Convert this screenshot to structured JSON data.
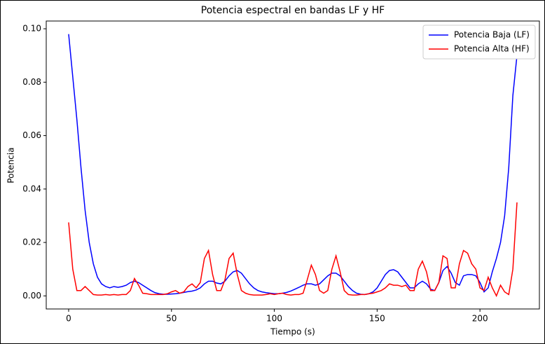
{
  "chart_data": {
    "type": "line",
    "title": "Potencia espectral en bandas LF y HF",
    "xlabel": "Tiempo (s)",
    "ylabel": "Potencia",
    "x": [
      0,
      2,
      4,
      6,
      8,
      10,
      12,
      14,
      16,
      18,
      20,
      22,
      24,
      26,
      28,
      30,
      32,
      34,
      36,
      38,
      40,
      42,
      44,
      46,
      48,
      50,
      52,
      54,
      56,
      58,
      60,
      62,
      64,
      66,
      68,
      70,
      72,
      74,
      76,
      78,
      80,
      82,
      84,
      86,
      88,
      90,
      92,
      94,
      96,
      98,
      100,
      102,
      104,
      106,
      108,
      110,
      112,
      114,
      116,
      118,
      120,
      122,
      124,
      126,
      128,
      130,
      132,
      134,
      136,
      138,
      140,
      142,
      144,
      146,
      148,
      150,
      152,
      154,
      156,
      158,
      160,
      162,
      164,
      166,
      168,
      170,
      172,
      174,
      176,
      178,
      180,
      182,
      184,
      186,
      188,
      190,
      192,
      194,
      196,
      198,
      200,
      202,
      204,
      206,
      208,
      210,
      212,
      214,
      216,
      218
    ],
    "series": [
      {
        "name": "Potencia Baja (LF)",
        "color": "#0000ff",
        "values": [
          0.098,
          0.082,
          0.066,
          0.048,
          0.032,
          0.02,
          0.012,
          0.007,
          0.0045,
          0.0035,
          0.003,
          0.0035,
          0.0032,
          0.0035,
          0.004,
          0.005,
          0.0055,
          0.005,
          0.004,
          0.003,
          0.002,
          0.0012,
          0.0008,
          0.0006,
          0.0006,
          0.0007,
          0.0008,
          0.001,
          0.0013,
          0.0016,
          0.0018,
          0.0022,
          0.003,
          0.0045,
          0.0055,
          0.0055,
          0.0048,
          0.0045,
          0.0055,
          0.0075,
          0.009,
          0.0095,
          0.0085,
          0.0065,
          0.0045,
          0.003,
          0.002,
          0.0015,
          0.0012,
          0.001,
          0.0008,
          0.0008,
          0.001,
          0.0013,
          0.0018,
          0.0025,
          0.0032,
          0.004,
          0.0045,
          0.0045,
          0.004,
          0.0045,
          0.006,
          0.0075,
          0.0085,
          0.0085,
          0.0075,
          0.0055,
          0.0035,
          0.002,
          0.001,
          0.0006,
          0.0005,
          0.0008,
          0.0015,
          0.003,
          0.0055,
          0.008,
          0.0095,
          0.0098,
          0.009,
          0.007,
          0.005,
          0.003,
          0.003,
          0.0045,
          0.0055,
          0.0045,
          0.0025,
          0.002,
          0.005,
          0.0095,
          0.011,
          0.0085,
          0.005,
          0.004,
          0.0075,
          0.008,
          0.008,
          0.0075,
          0.005,
          0.0015,
          0.003,
          0.009,
          0.014,
          0.02,
          0.03,
          0.048,
          0.075,
          0.09
        ]
      },
      {
        "name": "Potencia Alta (HF)",
        "color": "#ff0000",
        "values": [
          0.0275,
          0.01,
          0.002,
          0.002,
          0.0035,
          0.002,
          0.0005,
          0.0003,
          0.0003,
          0.0005,
          0.0003,
          0.0005,
          0.0003,
          0.0005,
          0.0005,
          0.002,
          0.0065,
          0.004,
          0.001,
          0.0008,
          0.0005,
          0.0005,
          0.0005,
          0.0005,
          0.0008,
          0.0015,
          0.002,
          0.001,
          0.0015,
          0.0035,
          0.0045,
          0.003,
          0.005,
          0.014,
          0.017,
          0.008,
          0.002,
          0.002,
          0.006,
          0.014,
          0.016,
          0.008,
          0.002,
          0.001,
          0.0005,
          0.0003,
          0.0003,
          0.0003,
          0.0005,
          0.0008,
          0.0005,
          0.0008,
          0.001,
          0.0005,
          0.0003,
          0.0005,
          0.0005,
          0.001,
          0.006,
          0.0115,
          0.008,
          0.002,
          0.001,
          0.002,
          0.01,
          0.015,
          0.009,
          0.002,
          0.0005,
          0.0003,
          0.0003,
          0.0005,
          0.0005,
          0.0008,
          0.001,
          0.0015,
          0.002,
          0.003,
          0.0045,
          0.004,
          0.004,
          0.0035,
          0.004,
          0.002,
          0.002,
          0.01,
          0.013,
          0.009,
          0.002,
          0.002,
          0.005,
          0.015,
          0.014,
          0.003,
          0.003,
          0.012,
          0.017,
          0.016,
          0.012,
          0.01,
          0.003,
          0.002,
          0.007,
          0.003,
          0.0,
          0.004,
          0.0015,
          0.0005,
          0.01,
          0.035
        ]
      }
    ],
    "xlim": [
      -10.9,
      228.9
    ],
    "ylim": [
      -0.0049,
      0.1029
    ],
    "xticks": [
      0,
      50,
      100,
      150,
      200
    ],
    "yticks": [
      {
        "value": 0,
        "label": "0.00"
      },
      {
        "value": 0.02,
        "label": "0.02"
      },
      {
        "value": 0.04,
        "label": "0.04"
      },
      {
        "value": 0.06,
        "label": "0.06"
      },
      {
        "value": 0.08,
        "label": "0.08"
      },
      {
        "value": 0.1,
        "label": "0.10"
      }
    ],
    "legend": "upper right"
  }
}
